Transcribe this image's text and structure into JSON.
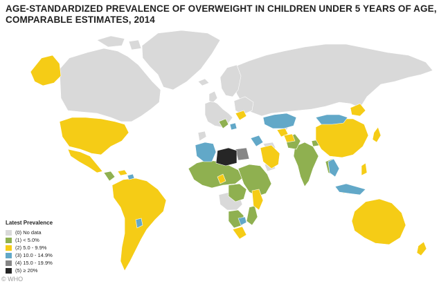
{
  "title": {
    "line1": "AGE-STANDARDIZED PREVALENCE OF OVERWEIGHT IN CHILDREN UNDER 5 YEARS OF AGE,",
    "line2": "COMPARABLE ESTIMATES, 2014"
  },
  "legend": {
    "title": "Latest Prevalence",
    "items": [
      {
        "label": "(0) No data",
        "color": "#d9d9d9"
      },
      {
        "label": "(1) < 5.0%",
        "color": "#8fb050"
      },
      {
        "label": "(2) 5.0 - 9.9%",
        "color": "#f5cc16"
      },
      {
        "label": "(3) 10.0 - 14.9%",
        "color": "#62a8c8"
      },
      {
        "label": "(4) 15.0 - 19.9%",
        "color": "#868686"
      },
      {
        "label": "(5) ≥ 20%",
        "color": "#262626"
      }
    ]
  },
  "credit": "© WHO"
}
